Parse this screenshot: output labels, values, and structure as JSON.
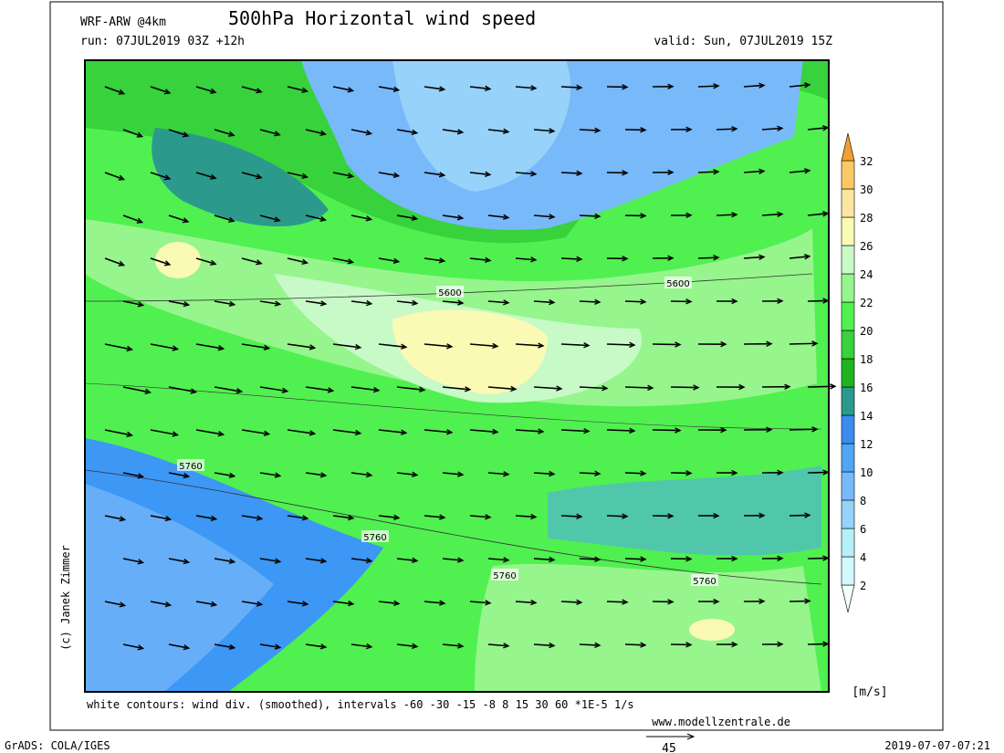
{
  "header": {
    "model": "WRF-ARW @4km",
    "title": "500hPa Horizontal wind speed",
    "run": "run: 07JUL2019 03Z +12h",
    "valid": "valid: Sun, 07JUL2019 15Z"
  },
  "colorbar": {
    "ticks": [
      2,
      4,
      6,
      8,
      10,
      12,
      14,
      16,
      18,
      20,
      22,
      24,
      26,
      28,
      30,
      32
    ],
    "unit": "[m/s]",
    "colors": [
      "#f5fffd",
      "#d2fafa",
      "#b4f0fa",
      "#96d2fa",
      "#78b9fa",
      "#50a5f5",
      "#3c8cf0",
      "#2b9a8c",
      "#1eb41e",
      "#37d23c",
      "#50f050",
      "#96f58c",
      "#c8fac8",
      "#fafab4",
      "#fae6a0",
      "#fac864",
      "#f0a032"
    ]
  },
  "contour_labels": [
    "5600",
    "5600",
    "5760",
    "5760",
    "5760",
    "5760"
  ],
  "footer": {
    "note": "white contours: wind div. (smoothed), intervals -60 -30 -15 -8 8 15 30 60 *1E-5 1/s",
    "site": "www.modellzentrale.de",
    "grads": "GrADS: COLA/IGES",
    "timestamp": "2019-07-07-07:21",
    "vector_scale": "45",
    "credit": "(c) Janek Zimmer"
  }
}
